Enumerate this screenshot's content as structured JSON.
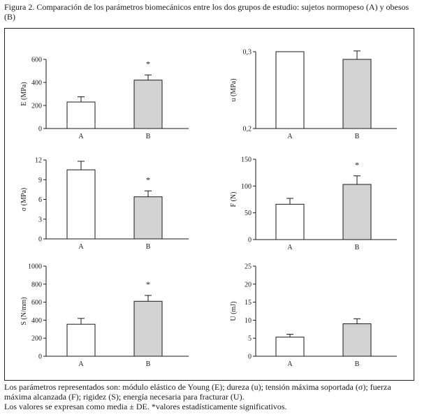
{
  "figure": {
    "caption": "Figura 2. Comparación de los parámetros biomecánicos entre los dos grupos de estudio: sujetos normopeso (A) y obesos (B)",
    "footer_line1": "Los parámetros representados son: módulo elástico de Young (E); dureza (u); tensión máxima soportada (σ); fuerza máxima alcanzada (F); rigidez (S); energía necesaria para fracturar (U).",
    "footer_line2": "Los valores se expresan como media ± DE. *valores estadísticamente significativos."
  },
  "colors": {
    "group_A": "#ffffff",
    "group_B": "#d3d3d3",
    "axis": "#1a1a1a"
  },
  "chart_data": [
    {
      "type": "bar",
      "ylabel": "E (MPa)",
      "categories": [
        "A",
        "B"
      ],
      "values": [
        230,
        420
      ],
      "errors": [
        45,
        45
      ],
      "ylim": [
        0,
        600
      ],
      "yticks": [
        "0",
        "200",
        "400",
        "600"
      ],
      "tick_values": [
        0,
        200,
        400,
        600
      ],
      "significance": [
        "",
        "*"
      ]
    },
    {
      "type": "bar",
      "ylabel": "u (MPa)",
      "categories": [
        "A",
        "B"
      ],
      "values": [
        0.3,
        0.29
      ],
      "errors": [
        0,
        0.011
      ],
      "ylim": [
        0.2,
        0.3
      ],
      "yticks": [
        "0,2",
        "0,3"
      ],
      "tick_values": [
        0.2,
        0.3
      ],
      "significance": [
        "",
        ""
      ]
    },
    {
      "type": "bar",
      "ylabel": "σ (MPa)",
      "categories": [
        "A",
        "B"
      ],
      "values": [
        10.5,
        6.4
      ],
      "errors": [
        1.3,
        0.9
      ],
      "ylim": [
        0,
        12
      ],
      "yticks": [
        "0",
        "3",
        "6",
        "9",
        "12"
      ],
      "tick_values": [
        0,
        3,
        6,
        9,
        12
      ],
      "significance": [
        "",
        "*"
      ]
    },
    {
      "type": "bar",
      "ylabel": "F (N)",
      "categories": [
        "A",
        "B"
      ],
      "values": [
        66,
        103
      ],
      "errors": [
        11,
        16
      ],
      "ylim": [
        0,
        150
      ],
      "yticks": [
        "0",
        "50",
        "100",
        "150"
      ],
      "tick_values": [
        0,
        50,
        100,
        150
      ],
      "significance": [
        "",
        "*"
      ]
    },
    {
      "type": "bar",
      "ylabel": "S (N/mm)",
      "categories": [
        "A",
        "B"
      ],
      "values": [
        355,
        610
      ],
      "errors": [
        65,
        65
      ],
      "ylim": [
        0,
        1000
      ],
      "yticks": [
        "0",
        "200",
        "400",
        "600",
        "800",
        "1000"
      ],
      "tick_values": [
        0,
        200,
        400,
        600,
        800,
        1000
      ],
      "significance": [
        "",
        "*"
      ]
    },
    {
      "type": "bar",
      "ylabel": "U (mJ)",
      "categories": [
        "A",
        "B"
      ],
      "values": [
        5.3,
        9.0
      ],
      "errors": [
        0.8,
        1.4
      ],
      "ylim": [
        0,
        25
      ],
      "yticks": [
        "0",
        "5",
        "10",
        "15",
        "20",
        "25"
      ],
      "tick_values": [
        0,
        5,
        10,
        15,
        20,
        25
      ],
      "significance": [
        "",
        ""
      ]
    }
  ]
}
